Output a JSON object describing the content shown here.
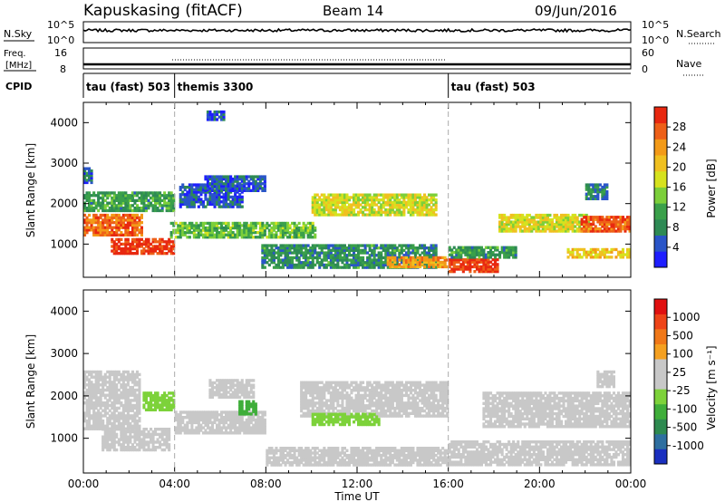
{
  "header": {
    "title": "Kapuskasing (fitACF)",
    "beam": "Beam 14",
    "date": "09/Jun/2016"
  },
  "labels": {
    "nsky": "N.Sky",
    "freq_top": "Freq.",
    "freq_unit": "[MHz]",
    "cpid": "CPID",
    "nsearch": "N.Search",
    "nave": "Nave",
    "time_axis": "Time UT",
    "range_axis": "Slant Range [km]",
    "power_label": "Power [dB]",
    "velocity_label": "Velocity [m s⁻¹]"
  },
  "noise_panel": {
    "left_ticks": [
      "10^5",
      "10^0"
    ],
    "right_ticks": [
      "10^5",
      "10^0"
    ]
  },
  "freq_panel": {
    "left_ticks": [
      "16",
      "8"
    ],
    "right_ticks": [
      "60",
      "0"
    ]
  },
  "cpid_segments": [
    {
      "start_hour": 0,
      "end_hour": 4,
      "label": "tau (fast) 503"
    },
    {
      "start_hour": 4,
      "end_hour": 16,
      "label": "themis 3300"
    },
    {
      "start_hour": 16,
      "end_hour": 24,
      "label": "tau (fast) 503"
    }
  ],
  "time_ticks": [
    "00:00",
    "04:00",
    "08:00",
    "12:00",
    "16:00",
    "20:00",
    "00:00"
  ],
  "power_colorbar": {
    "ticks": [
      "4",
      "8",
      "12",
      "16",
      "20",
      "24",
      "28"
    ],
    "colors": [
      "#1e1eff",
      "#2a55c8",
      "#2e8a55",
      "#3aa04a",
      "#7ccf3a",
      "#d6e21e",
      "#f0c020",
      "#f39a18",
      "#ee6018",
      "#e82810"
    ]
  },
  "velocity_colorbar": {
    "ticks": [
      "1000",
      "500",
      "100",
      "25",
      "-25",
      "-100",
      "-500",
      "-1000"
    ],
    "colors": [
      "#1a2fbf",
      "#2e6fa0",
      "#2e8a50",
      "#3fae3a",
      "#7dd23a",
      "#c8c8c8",
      "#c8c8c8",
      "#f5a020",
      "#f07818",
      "#ee4418",
      "#e01010"
    ]
  },
  "chart_data": [
    {
      "type": "heatmap",
      "title": "Power",
      "xlabel": "Time UT",
      "ylabel": "Slant Range [km]",
      "xlim": [
        0,
        24
      ],
      "ylim": [
        180,
        4500
      ],
      "yticks": [
        1000,
        2000,
        3000,
        4000
      ],
      "units": "dB",
      "clim": [
        0,
        32
      ],
      "bands": [
        {
          "t0": 0.0,
          "t1": 2.6,
          "r_lo": 1200,
          "r_hi": 1750,
          "value": 27
        },
        {
          "t0": 1.2,
          "t1": 4.0,
          "r_lo": 750,
          "r_hi": 1150,
          "value": 30
        },
        {
          "t0": 0.0,
          "t1": 4.0,
          "r_lo": 1800,
          "r_hi": 2300,
          "value": 10
        },
        {
          "t0": 0.0,
          "t1": 0.4,
          "r_lo": 2500,
          "r_hi": 2900,
          "value": 6
        },
        {
          "t0": 4.2,
          "t1": 7.0,
          "r_lo": 1900,
          "r_hi": 2500,
          "value": 5
        },
        {
          "t0": 5.3,
          "t1": 8.0,
          "r_lo": 2300,
          "r_hi": 2700,
          "value": 5
        },
        {
          "t0": 5.4,
          "t1": 6.2,
          "r_lo": 4050,
          "r_hi": 4300,
          "value": 4
        },
        {
          "t0": 3.8,
          "t1": 10.2,
          "r_lo": 1150,
          "r_hi": 1550,
          "value": 13
        },
        {
          "t0": 7.8,
          "t1": 15.5,
          "r_lo": 400,
          "r_hi": 1000,
          "value": 9
        },
        {
          "t0": 10.0,
          "t1": 15.5,
          "r_lo": 1700,
          "r_hi": 2250,
          "value": 18
        },
        {
          "t0": 13.3,
          "t1": 16.0,
          "r_lo": 420,
          "r_hi": 700,
          "value": 24
        },
        {
          "t0": 16.0,
          "t1": 18.2,
          "r_lo": 300,
          "r_hi": 650,
          "value": 30
        },
        {
          "t0": 16.0,
          "t1": 19.0,
          "r_lo": 650,
          "r_hi": 950,
          "value": 10
        },
        {
          "t0": 18.2,
          "t1": 22.2,
          "r_lo": 1300,
          "r_hi": 1750,
          "value": 18
        },
        {
          "t0": 21.8,
          "t1": 24.0,
          "r_lo": 1300,
          "r_hi": 1700,
          "value": 28
        },
        {
          "t0": 21.2,
          "t1": 24.0,
          "r_lo": 650,
          "r_hi": 900,
          "value": 20
        },
        {
          "t0": 22.0,
          "t1": 23.0,
          "r_lo": 2100,
          "r_hi": 2500,
          "value": 8
        }
      ]
    },
    {
      "type": "heatmap",
      "title": "Velocity",
      "xlabel": "Time UT",
      "ylabel": "Slant Range [km]",
      "xlim": [
        0,
        24
      ],
      "ylim": [
        180,
        4500
      ],
      "yticks": [
        1000,
        2000,
        3000,
        4000
      ],
      "units": "m s^-1",
      "clim": [
        -1000,
        1000
      ],
      "bands": [
        {
          "t0": 0.0,
          "t1": 2.5,
          "r_lo": 1200,
          "r_hi": 2600,
          "value": 0
        },
        {
          "t0": 0.8,
          "t1": 3.8,
          "r_lo": 700,
          "r_hi": 1250,
          "value": 150
        },
        {
          "t0": 2.6,
          "t1": 4.0,
          "r_lo": 1650,
          "r_hi": 2100,
          "value": -200
        },
        {
          "t0": 4.0,
          "t1": 8.0,
          "r_lo": 1100,
          "r_hi": 1650,
          "value": 120
        },
        {
          "t0": 6.8,
          "t1": 7.6,
          "r_lo": 1550,
          "r_hi": 1900,
          "value": -400
        },
        {
          "t0": 5.5,
          "t1": 7.5,
          "r_lo": 1950,
          "r_hi": 2400,
          "value": 0
        },
        {
          "t0": 9.5,
          "t1": 16.0,
          "r_lo": 1500,
          "r_hi": 2350,
          "value": 0
        },
        {
          "t0": 10.0,
          "t1": 13.0,
          "r_lo": 1300,
          "r_hi": 1600,
          "value": -200
        },
        {
          "t0": 8.0,
          "t1": 16.0,
          "r_lo": 350,
          "r_hi": 800,
          "value": 0
        },
        {
          "t0": 16.0,
          "t1": 24.0,
          "r_lo": 350,
          "r_hi": 950,
          "value": 0
        },
        {
          "t0": 17.5,
          "t1": 24.0,
          "r_lo": 1250,
          "r_hi": 2100,
          "value": 0
        },
        {
          "t0": 22.5,
          "t1": 23.3,
          "r_lo": 2200,
          "r_hi": 2600,
          "value": 0
        }
      ]
    }
  ]
}
